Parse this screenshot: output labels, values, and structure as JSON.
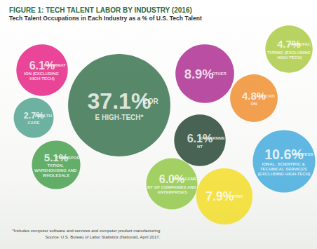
{
  "chart_data": {
    "type": "bubble",
    "title": "FIGURE 1: TECH TALENT LABOR BY INDUSTRY (2016)",
    "subtitle": "Tech Talent Occupations in Each Industry as a % of U.S. Tech Talent",
    "categories": [
      "INFORMATION (EXCLUDING HIGH-TECH)",
      "CORE HIGH-TECH*",
      "OTHER",
      "MANUFACTURING (EXCLUDING HIGH-TECH)",
      "EDUCATION",
      "HEALTHCARE",
      "GOVERNMENT",
      "PROFESSIONAL, SCIENTIFIC & TECHNICAL SERVICES (EXCLUDING HIGH-TECH)",
      "TRANSPORTATION, WAREHOUSING AND WHOLESALE",
      "MANAGEMENT OF COMPANIES AND ENTERPRISES",
      "FIRE"
    ],
    "values": [
      6.1,
      37.1,
      8.9,
      4.7,
      4.8,
      2.7,
      6.1,
      10.6,
      5.1,
      6.0,
      7.9
    ],
    "value_labels": [
      "6.1%",
      "37.1%",
      "8.9%",
      "4.7%",
      "4.8%",
      "2.7%",
      "6.1%",
      "10.6%",
      "5.1%",
      "6.0%",
      "7.9%"
    ],
    "colors": [
      "#e5177e",
      "#2e6b45",
      "#a8228c",
      "#a6c83b",
      "#f08a24",
      "#4a9f8b",
      "#1b3d2a",
      "#3aa7dc",
      "#3d9b45",
      "#8cc63f",
      "#f2dc1c"
    ],
    "data_labels": true,
    "tick_labels": false,
    "annotations": [
      "*Includes computer software and services and computer product manufacturing",
      "Source: U.S. Bureau of Labor Statistics (National), April 2017."
    ]
  }
}
